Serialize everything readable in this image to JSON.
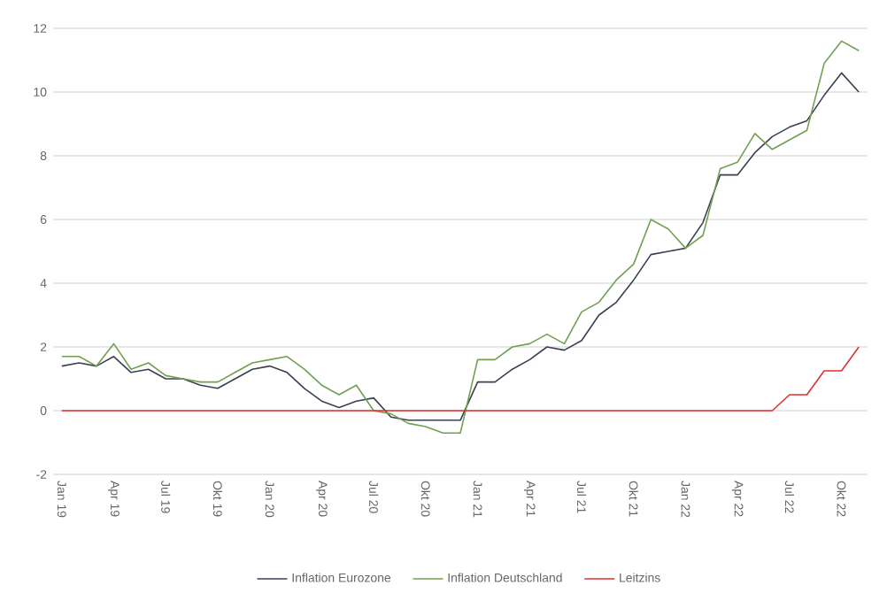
{
  "chart_data": {
    "type": "line",
    "categories": [
      "Jan 19",
      null,
      null,
      "Apr 19",
      null,
      null,
      "Jul 19",
      null,
      null,
      "Okt 19",
      null,
      null,
      "Jan 20",
      null,
      null,
      "Apr 20",
      null,
      null,
      "Jul 20",
      null,
      null,
      "Okt 20",
      null,
      null,
      "Jan 21",
      null,
      null,
      "Apr 21",
      null,
      null,
      "Jul 21",
      null,
      null,
      "Okt 21",
      null,
      null,
      "Jan 22",
      null,
      null,
      "Apr 22",
      null,
      null,
      "Jul 22",
      null,
      null,
      "Okt 22",
      null
    ],
    "series": [
      {
        "name": "Inflation Eurozone",
        "color": "#3b3f54",
        "values": [
          1.4,
          1.5,
          1.4,
          1.7,
          1.2,
          1.3,
          1.0,
          1.0,
          0.8,
          0.7,
          1.0,
          1.3,
          1.4,
          1.2,
          0.7,
          0.3,
          0.1,
          0.3,
          0.4,
          -0.2,
          -0.3,
          -0.3,
          -0.3,
          -0.3,
          0.9,
          0.9,
          1.3,
          1.6,
          2.0,
          1.9,
          2.2,
          3.0,
          3.4,
          4.1,
          4.9,
          5.0,
          5.1,
          5.9,
          7.4,
          7.4,
          8.1,
          8.6,
          8.9,
          9.1,
          9.9,
          10.6,
          10.0
        ]
      },
      {
        "name": "Inflation Deutschland",
        "color": "#70a050",
        "values": [
          1.7,
          1.7,
          1.4,
          2.1,
          1.3,
          1.5,
          1.1,
          1.0,
          0.9,
          0.9,
          1.2,
          1.5,
          1.6,
          1.7,
          1.3,
          0.8,
          0.5,
          0.8,
          0.0,
          -0.1,
          -0.4,
          -0.5,
          -0.7,
          -0.7,
          1.6,
          1.6,
          2.0,
          2.1,
          2.4,
          2.1,
          3.1,
          3.4,
          4.1,
          4.6,
          6.0,
          5.7,
          5.1,
          5.5,
          7.6,
          7.8,
          8.7,
          8.2,
          8.5,
          8.8,
          10.9,
          11.6,
          11.3
        ]
      },
      {
        "name": "Leitzins",
        "color": "#e03030",
        "values": [
          0,
          0,
          0,
          0,
          0,
          0,
          0,
          0,
          0,
          0,
          0,
          0,
          0,
          0,
          0,
          0,
          0,
          0,
          0,
          0,
          0,
          0,
          0,
          0,
          0,
          0,
          0,
          0,
          0,
          0,
          0,
          0,
          0,
          0,
          0,
          0,
          0,
          0,
          0,
          0,
          0,
          0,
          0.5,
          0.5,
          1.25,
          1.25,
          2.0
        ]
      }
    ],
    "ylim": [
      -2,
      12
    ],
    "yticks": [
      -2,
      0,
      2,
      4,
      6,
      8,
      10,
      12
    ],
    "grid": "y",
    "legend": "bottom",
    "marker": "none",
    "line_style": "solid"
  }
}
